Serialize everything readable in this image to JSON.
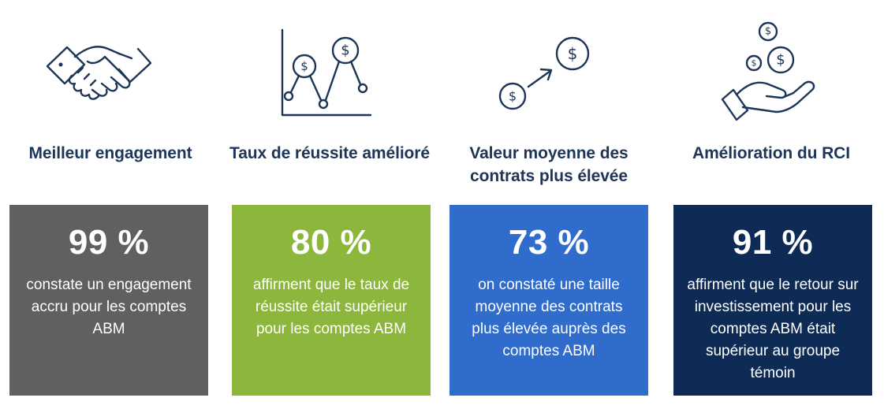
{
  "colors": {
    "heading": "#1d3557",
    "card1": "#606060",
    "card2": "#8db63c",
    "card3": "#2f6ccb",
    "card4": "#0d2b55"
  },
  "cards": [
    {
      "icon": "handshake-icon",
      "heading": "Meilleur engagement",
      "percent": "99 %",
      "description": "constate un engagement accru pour les comptes ABM"
    },
    {
      "icon": "line-chart-dollar-icon",
      "heading": "Taux de réussite amélioré",
      "percent": "80 %",
      "description": "affirment que le taux de réussite était supérieur pour les comptes ABM"
    },
    {
      "icon": "growth-dollar-arrow-icon",
      "heading": "Valeur moyenne des contrats plus élevée",
      "percent": "73 %",
      "description": "on constaté une taille moyenne des contrats plus élevée auprès des comptes ABM"
    },
    {
      "icon": "hand-coins-icon",
      "heading": "Amélioration du RCI",
      "percent": "91 %",
      "description": "affirment que le retour sur investissement pour les comptes ABM était supérieur au groupe témoin"
    }
  ]
}
